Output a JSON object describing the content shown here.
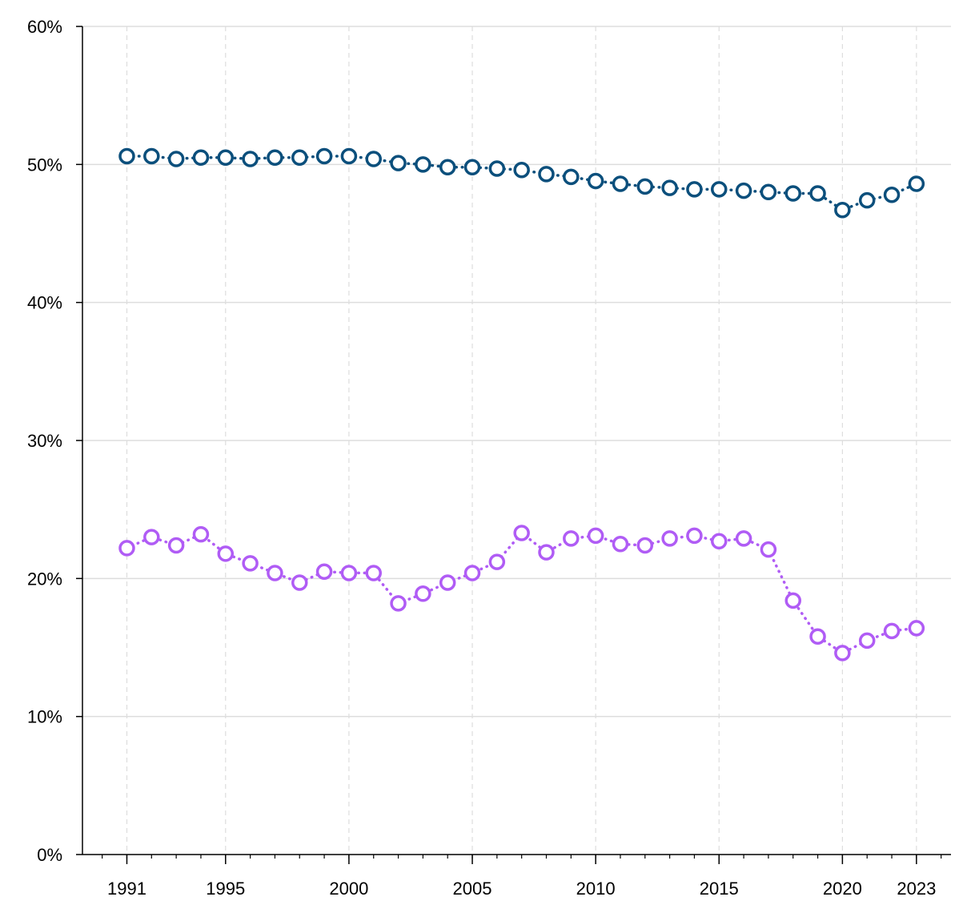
{
  "chart_data": {
    "type": "line",
    "title": "",
    "xlabel": "",
    "ylabel": "",
    "x": [
      1991,
      1992,
      1993,
      1994,
      1995,
      1996,
      1997,
      1998,
      1999,
      2000,
      2001,
      2002,
      2003,
      2004,
      2005,
      2006,
      2007,
      2008,
      2009,
      2010,
      2011,
      2012,
      2013,
      2014,
      2015,
      2016,
      2017,
      2018,
      2019,
      2020,
      2021,
      2022,
      2023
    ],
    "xticks": [
      1991,
      1995,
      2000,
      2005,
      2010,
      2015,
      2020,
      2023
    ],
    "xlim": [
      1989.2,
      2024.4
    ],
    "ylim": [
      0,
      60
    ],
    "yticks": [
      0,
      10,
      20,
      30,
      40,
      50,
      60
    ],
    "ytick_labels": [
      "0%",
      "10%",
      "20%",
      "30%",
      "40%",
      "50%",
      "60%"
    ],
    "grid": true,
    "legend": "none",
    "series": [
      {
        "color": "#0b4f7c",
        "line_style": "dotted",
        "marker": "hollow-circle",
        "values": [
          50.6,
          50.6,
          50.4,
          50.5,
          50.5,
          50.4,
          50.5,
          50.5,
          50.6,
          50.6,
          50.4,
          50.1,
          50.0,
          49.8,
          49.8,
          49.7,
          49.6,
          49.3,
          49.1,
          48.8,
          48.6,
          48.4,
          48.3,
          48.2,
          48.2,
          48.1,
          48.0,
          47.9,
          47.9,
          46.7,
          47.4,
          47.8,
          48.6
        ]
      },
      {
        "color": "#b05cf5",
        "line_style": "dotted",
        "marker": "hollow-circle",
        "values": [
          22.2,
          23.0,
          22.4,
          23.2,
          21.8,
          21.1,
          20.4,
          19.7,
          20.5,
          20.4,
          20.4,
          18.2,
          18.9,
          19.7,
          20.4,
          21.2,
          23.3,
          21.9,
          22.9,
          23.1,
          22.5,
          22.4,
          22.9,
          23.1,
          22.7,
          22.9,
          22.1,
          18.4,
          15.8,
          14.6,
          15.5,
          16.2,
          16.4
        ]
      }
    ]
  }
}
